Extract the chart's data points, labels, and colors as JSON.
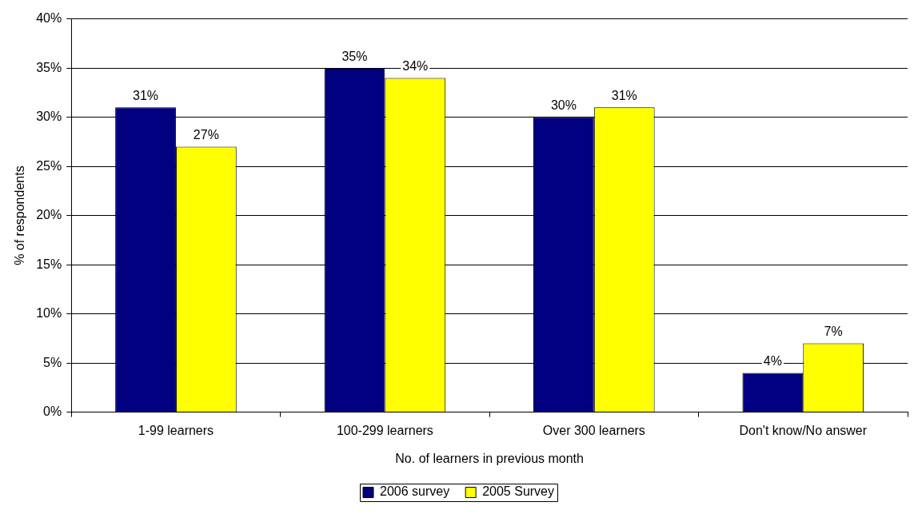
{
  "chart_data": {
    "type": "bar",
    "xlabel": "No. of learners in previous month",
    "ylabel": "% of respondents",
    "categories": [
      "1-99 learners",
      "100-299 learners",
      "Over 300 learners",
      "Don't know/No answer"
    ],
    "series": [
      {
        "name": "2006 survey",
        "color": "#000080",
        "values": [
          31,
          35,
          30,
          4
        ],
        "value_labels": [
          "31%",
          "35%",
          "30%",
          "4%"
        ]
      },
      {
        "name": "2005 Survey",
        "color": "#ffff00",
        "values": [
          27,
          34,
          31,
          7
        ],
        "value_labels": [
          "27%",
          "34%",
          "31%",
          "7%"
        ]
      }
    ],
    "ylim": [
      0,
      40
    ],
    "yticks": [
      {
        "value": 0,
        "label": "0%"
      },
      {
        "value": 5,
        "label": "5%"
      },
      {
        "value": 10,
        "label": "10%"
      },
      {
        "value": 15,
        "label": "15%"
      },
      {
        "value": 20,
        "label": "20%"
      },
      {
        "value": 25,
        "label": "25%"
      },
      {
        "value": 30,
        "label": "30%"
      },
      {
        "value": 35,
        "label": "35%"
      },
      {
        "value": 40,
        "label": "40%"
      }
    ],
    "grid": "y",
    "legend": "bottom"
  }
}
